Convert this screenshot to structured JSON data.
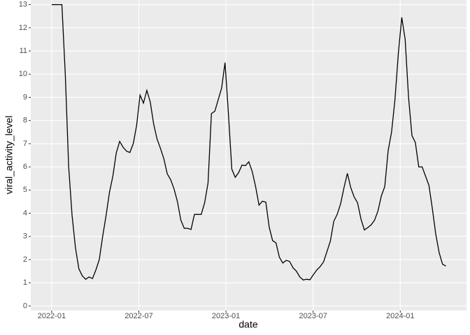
{
  "chart_data": {
    "type": "line",
    "x_label": "date",
    "y_label": "viral_activity_level",
    "color": "#000000",
    "grid": true,
    "panel_color": "#ebebeb",
    "xlim": [
      2021.88,
      2024.38
    ],
    "xticks": [
      {
        "value": 2022.0,
        "label": "2022-01"
      },
      {
        "value": 2022.5,
        "label": "2022-07"
      },
      {
        "value": 2023.0,
        "label": "2023-01"
      },
      {
        "value": 2023.5,
        "label": "2023-07"
      },
      {
        "value": 2024.0,
        "label": "2024-01"
      }
    ],
    "ylim": [
      -0.2,
      13.2
    ],
    "yticks": [
      0,
      1,
      2,
      3,
      4,
      5,
      6,
      7,
      8,
      9,
      10,
      11,
      12,
      13
    ],
    "x": [
      2022,
      2022.0195,
      2022.039,
      2022.0585,
      2022.078,
      2022.0975,
      2022.117,
      2022.1365,
      2022.156,
      2022.1755,
      2022.195,
      2022.2145,
      2022.234,
      2022.2535,
      2022.273,
      2022.2925,
      2022.312,
      2022.3315,
      2022.351,
      2022.3705,
      2022.39,
      2022.4095,
      2022.429,
      2022.4485,
      2022.468,
      2022.4875,
      2022.507,
      2022.5265,
      2022.546,
      2022.5655,
      2022.585,
      2022.6045,
      2022.624,
      2022.6435,
      2022.663,
      2022.6825,
      2022.702,
      2022.7215,
      2022.741,
      2022.7605,
      2022.78,
      2022.7995,
      2022.819,
      2022.8385,
      2022.858,
      2022.8775,
      2022.897,
      2022.9165,
      2022.936,
      2022.9555,
      2022.975,
      2022.9945,
      2023.014,
      2023.0335,
      2023.053,
      2023.0725,
      2023.092,
      2023.1115,
      2023.131,
      2023.1505,
      2023.17,
      2023.1895,
      2023.209,
      2023.2285,
      2023.248,
      2023.2675,
      2023.287,
      2023.3065,
      2023.326,
      2023.3455,
      2023.365,
      2023.3845,
      2023.404,
      2023.4235,
      2023.443,
      2023.4625,
      2023.482,
      2023.5015,
      2023.521,
      2023.5405,
      2023.56,
      2023.5795,
      2023.599,
      2023.6185,
      2023.638,
      2023.6575,
      2023.677,
      2023.6965,
      2023.716,
      2023.7355,
      2023.755,
      2023.7745,
      2023.794,
      2023.8135,
      2023.833,
      2023.8525,
      2023.872,
      2023.8915,
      2023.911,
      2023.9305,
      2023.95,
      2023.9695,
      2023.989,
      2024.0085,
      2024.028,
      2024.0475,
      2024.067,
      2024.0865,
      2024.106,
      2024.1255,
      2024.145,
      2024.1645,
      2024.184,
      2024.2035,
      2024.223,
      2024.2425,
      2024.262
    ],
    "values": [
      13,
      13,
      13,
      13,
      10.0,
      6.0,
      3.9,
      2.5,
      1.6,
      1.3,
      1.15,
      1.25,
      1.18,
      1.55,
      2.0,
      3.0,
      3.9,
      4.9,
      5.6,
      6.6,
      7.1,
      6.85,
      6.68,
      6.62,
      7.0,
      7.8,
      9.1,
      8.75,
      9.3,
      8.8,
      7.85,
      7.2,
      6.8,
      6.35,
      5.7,
      5.45,
      5.05,
      4.5,
      3.7,
      3.35,
      3.35,
      3.3,
      3.95,
      3.95,
      3.95,
      4.45,
      5.3,
      8.3,
      8.4,
      8.9,
      9.4,
      10.5,
      8.3,
      5.9,
      5.55,
      5.75,
      6.08,
      6.05,
      6.22,
      5.8,
      5.15,
      4.35,
      4.52,
      4.48,
      3.4,
      2.82,
      2.72,
      2.1,
      1.85,
      1.97,
      1.92,
      1.65,
      1.5,
      1.25,
      1.12,
      1.15,
      1.13,
      1.35,
      1.55,
      1.7,
      1.9,
      2.35,
      2.8,
      3.65,
      3.95,
      4.4,
      5.1,
      5.72,
      5.1,
      4.7,
      4.45,
      3.75,
      3.28,
      3.38,
      3.5,
      3.7,
      4.1,
      4.75,
      5.15,
      6.7,
      7.5,
      8.9,
      10.9,
      12.45,
      11.5,
      9.0,
      7.35,
      7.05,
      6.0,
      6.0,
      5.6,
      5.2,
      4.2,
      3.1,
      2.3,
      1.8,
      1.72
    ]
  }
}
